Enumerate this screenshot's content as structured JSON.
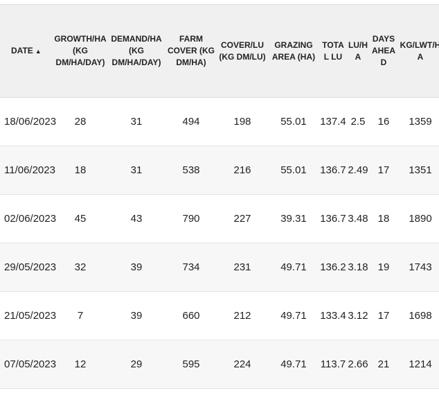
{
  "table": {
    "columns": [
      {
        "key": "date",
        "label": "DATE",
        "sorted": "asc"
      },
      {
        "key": "growth",
        "label": "GROWTH/HA (KG DM/HA/DAY)"
      },
      {
        "key": "demand",
        "label": "DEMAND/HA (KG DM/HA/DAY)"
      },
      {
        "key": "farm_cover",
        "label": "FARM COVER (KG DM/HA)"
      },
      {
        "key": "cover_lu",
        "label": "COVER/LU (KG DM/LU)"
      },
      {
        "key": "grazing_area",
        "label": "GRAZING AREA (HA)"
      },
      {
        "key": "total_lu",
        "label": "TOTAL LU"
      },
      {
        "key": "lu_ha",
        "label": "LU/HA"
      },
      {
        "key": "days_ahead",
        "label": "DAYS AHEAD"
      },
      {
        "key": "kg_lwt_ha",
        "label": "KG/LWT/HA"
      }
    ],
    "sort_icon": "▲",
    "rows": [
      {
        "date": "18/06/2023",
        "growth": "28",
        "demand": "31",
        "farm_cover": "494",
        "cover_lu": "198",
        "grazing_area": "55.01",
        "total_lu": "137.4",
        "lu_ha": "2.5",
        "days_ahead": "16",
        "kg_lwt_ha": "1359"
      },
      {
        "date": "11/06/2023",
        "growth": "18",
        "demand": "31",
        "farm_cover": "538",
        "cover_lu": "216",
        "grazing_area": "55.01",
        "total_lu": "136.7",
        "lu_ha": "2.49",
        "days_ahead": "17",
        "kg_lwt_ha": "1351"
      },
      {
        "date": "02/06/2023",
        "growth": "45",
        "demand": "43",
        "farm_cover": "790",
        "cover_lu": "227",
        "grazing_area": "39.31",
        "total_lu": "136.7",
        "lu_ha": "3.48",
        "days_ahead": "18",
        "kg_lwt_ha": "1890"
      },
      {
        "date": "29/05/2023",
        "growth": "32",
        "demand": "39",
        "farm_cover": "734",
        "cover_lu": "231",
        "grazing_area": "49.71",
        "total_lu": "136.2",
        "lu_ha": "3.18",
        "days_ahead": "19",
        "kg_lwt_ha": "1743"
      },
      {
        "date": "21/05/2023",
        "growth": "7",
        "demand": "39",
        "farm_cover": "660",
        "cover_lu": "212",
        "grazing_area": "49.71",
        "total_lu": "133.4",
        "lu_ha": "3.12",
        "days_ahead": "17",
        "kg_lwt_ha": "1698"
      },
      {
        "date": "07/05/2023",
        "growth": "12",
        "demand": "29",
        "farm_cover": "595",
        "cover_lu": "224",
        "grazing_area": "49.71",
        "total_lu": "113.7",
        "lu_ha": "2.66",
        "days_ahead": "21",
        "kg_lwt_ha": "1214"
      }
    ]
  }
}
